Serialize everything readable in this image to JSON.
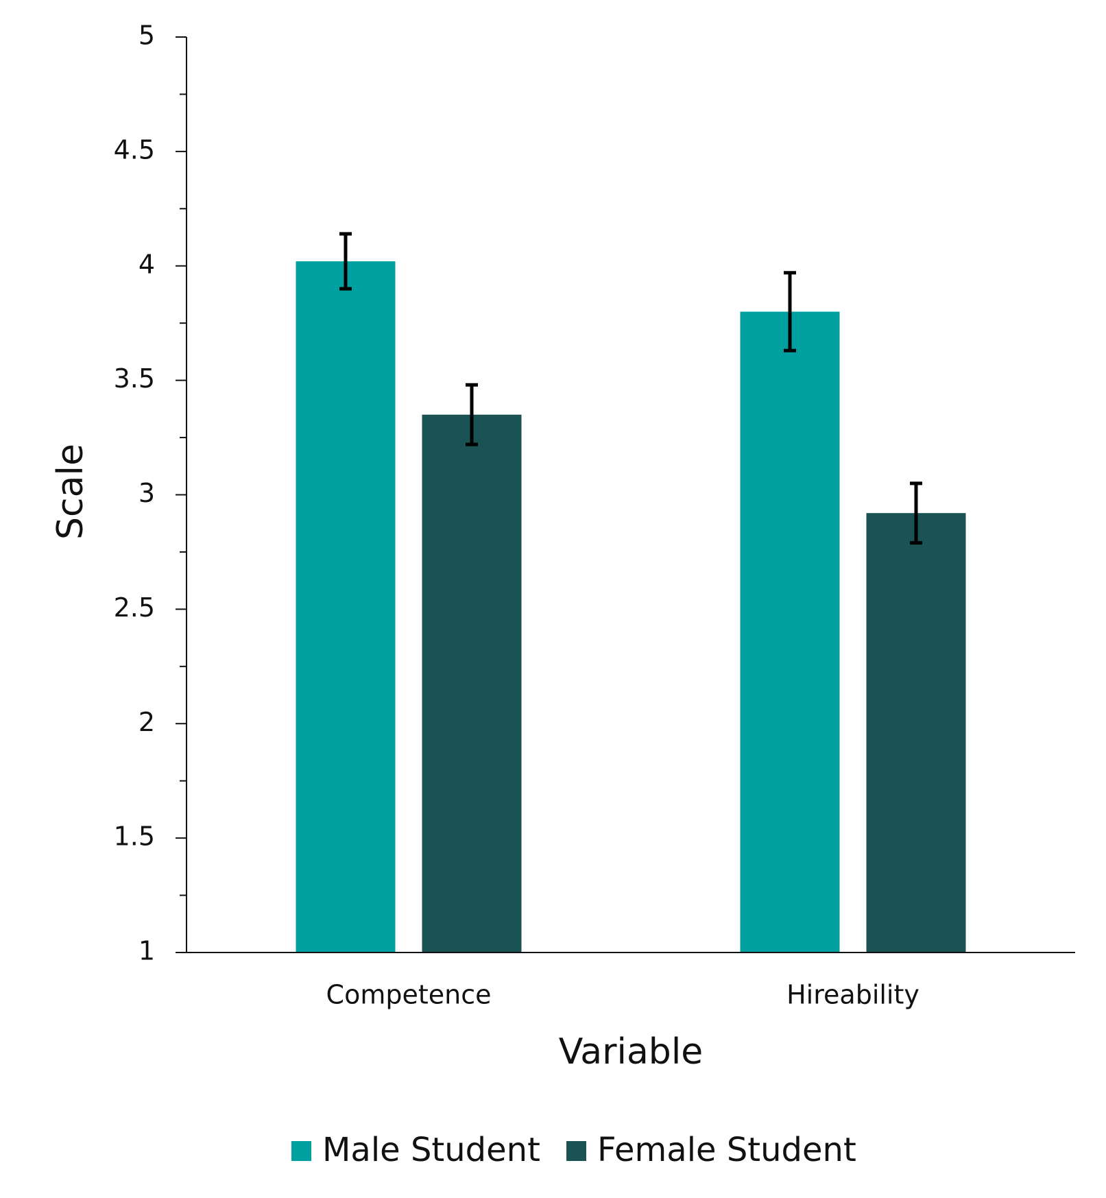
{
  "chart_data": {
    "type": "bar",
    "x_label": "Variable",
    "y_label": "Scale",
    "categories": [
      "Competence",
      "Hireability"
    ],
    "series": [
      {
        "name": "Male Student",
        "color": "#00a0a0",
        "values": [
          4.02,
          3.8
        ],
        "errors": [
          0.12,
          0.17
        ]
      },
      {
        "name": "Female Student",
        "color": "#1b5355",
        "values": [
          3.35,
          2.92
        ],
        "errors": [
          0.13,
          0.13
        ]
      }
    ],
    "ylim": [
      1,
      5
    ],
    "yticks": [
      1,
      1.5,
      2,
      2.5,
      3,
      3.5,
      4,
      4.5,
      5
    ],
    "minor_yticks": [
      1.25,
      1.75,
      2.25,
      2.75,
      3.25,
      3.75,
      4.25,
      4.75
    ],
    "grid": false,
    "legend": "bottom"
  }
}
